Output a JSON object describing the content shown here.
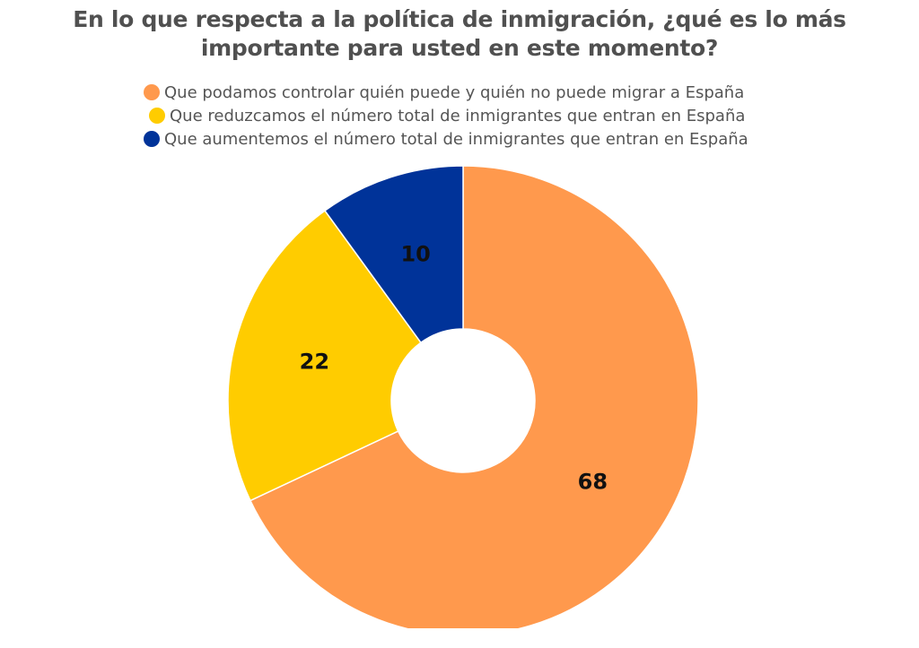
{
  "chart_data": {
    "type": "pie",
    "title": "En lo que respecta a la política de inmigración, ¿qué es lo más importante para usted en este momento?",
    "legend_position": "top",
    "categories": [
      "Que podamos controlar quién puede y quién no puede migrar a España",
      "Que reduzcamos el número total de inmigrantes que entran en España",
      "Que aumentemos el número total de inmigrantes que entran en España"
    ],
    "values": [
      68,
      22,
      10
    ],
    "data_labels": [
      "68",
      "22",
      "10"
    ],
    "colors": [
      "#FF994D",
      "#FFCC00",
      "#003399"
    ],
    "donut": true
  }
}
